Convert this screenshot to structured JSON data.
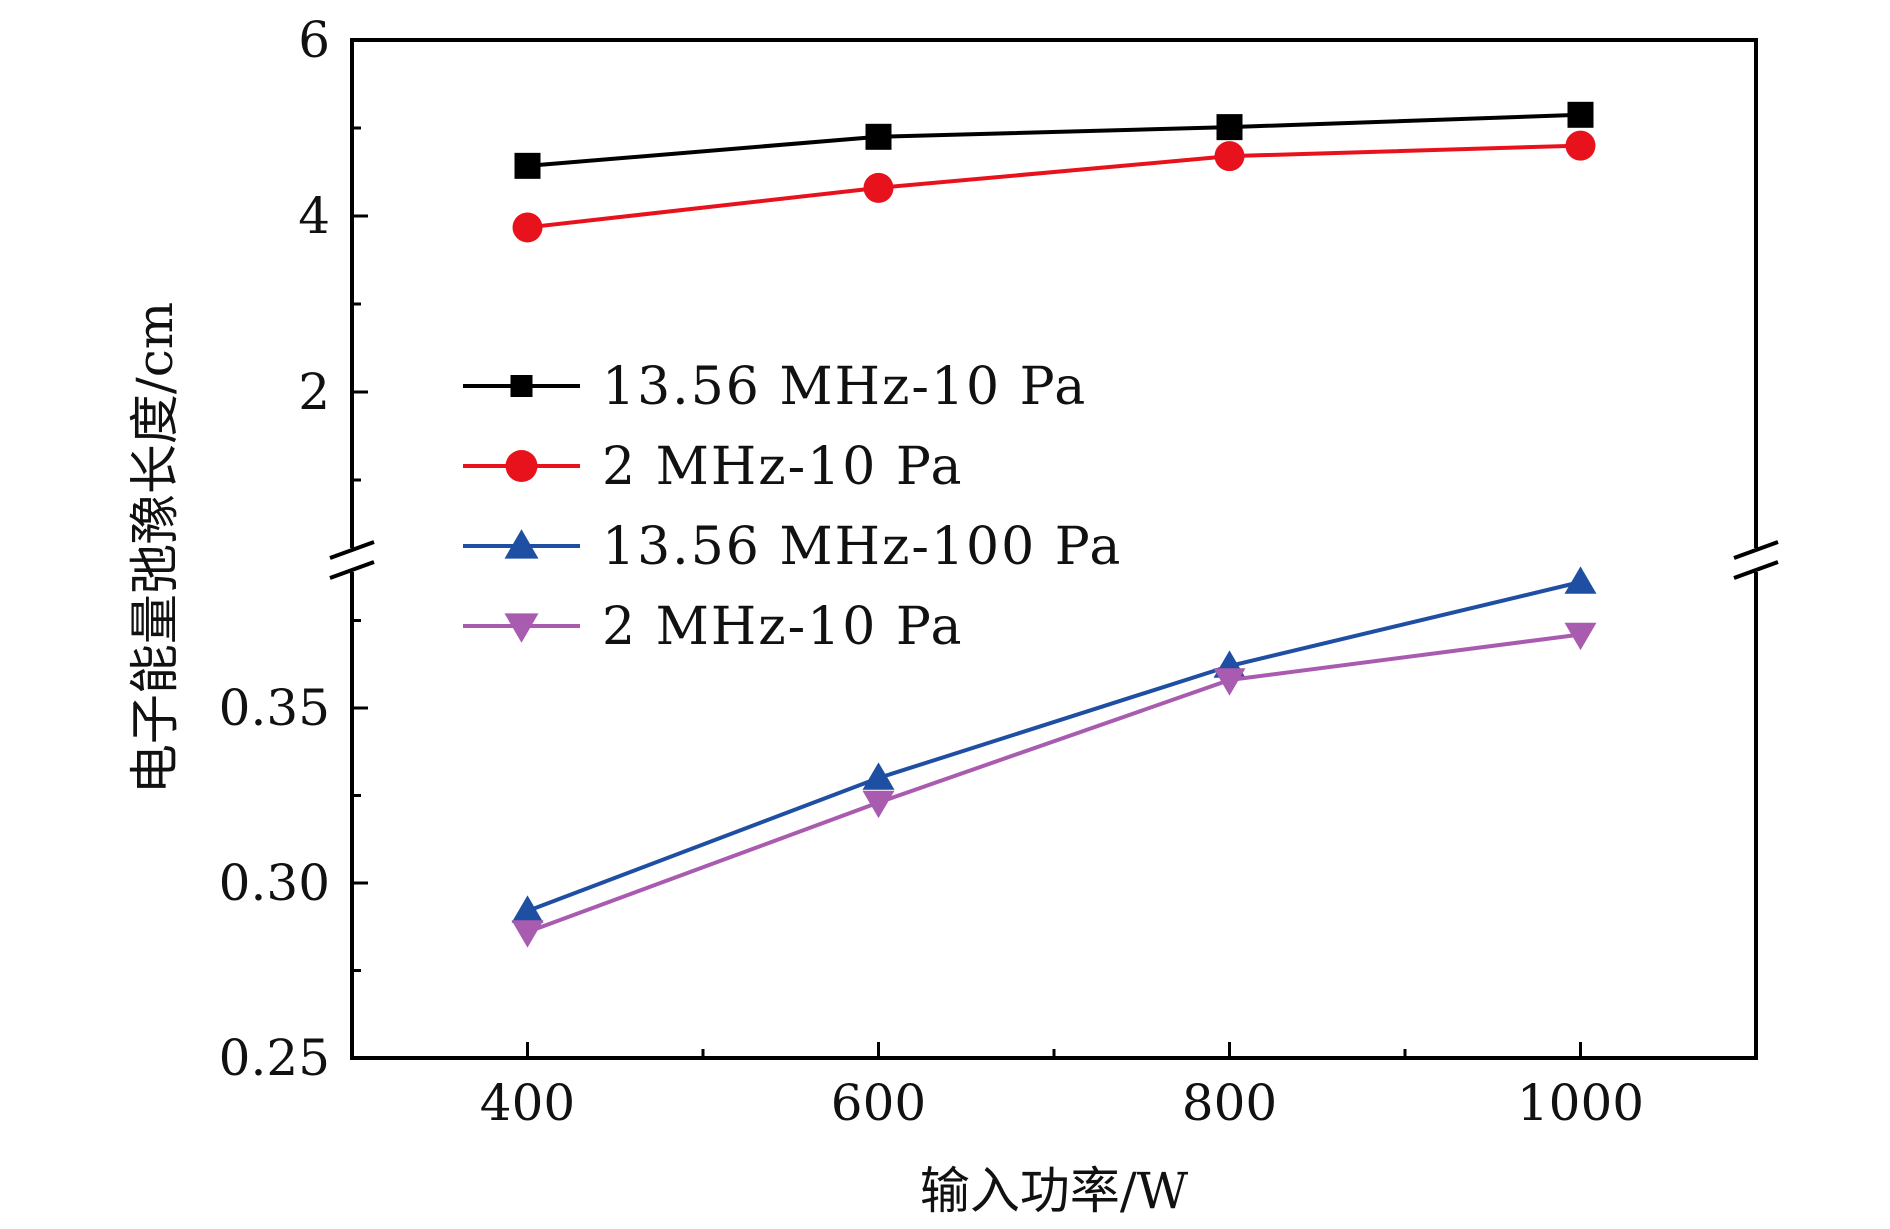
{
  "chart_data": {
    "type": "line",
    "xlabel": "输入功率/W",
    "ylabel": "电子能量弛豫长度/cm",
    "xlim": [
      300,
      1100
    ],
    "x_ticks": [
      400,
      600,
      800,
      1000
    ],
    "y_axis_broken": true,
    "upper_ylim": [
      0,
      6
    ],
    "upper_ticks": [
      "2",
      "4",
      "6"
    ],
    "lower_ylim": [
      0.25,
      0.39
    ],
    "lower_ticks": [
      "0.25",
      "0.30",
      "0.35"
    ],
    "grid": false,
    "legend_position": "center-left",
    "x": [
      400,
      600,
      800,
      1000
    ],
    "series": [
      {
        "name": "13.56 MHz-10 Pa",
        "panel": "upper",
        "marker": "square",
        "color": "#000000",
        "values": [
          4.57,
          4.9,
          5.01,
          5.15
        ]
      },
      {
        "name": "2 MHz-10 Pa",
        "panel": "upper",
        "marker": "circle",
        "color": "#e8121d",
        "values": [
          3.87,
          4.32,
          4.68,
          4.8
        ]
      },
      {
        "name": "13.56 MHz-100 Pa",
        "panel": "lower",
        "marker": "triangle-up",
        "color": "#1f4fa3",
        "values": [
          0.292,
          0.33,
          0.362,
          0.386
        ]
      },
      {
        "name": "2 MHz-10 Pa",
        "panel": "lower",
        "marker": "triangle-down",
        "color": "#a95bb0",
        "values": [
          0.286,
          0.323,
          0.358,
          0.371
        ]
      }
    ]
  }
}
